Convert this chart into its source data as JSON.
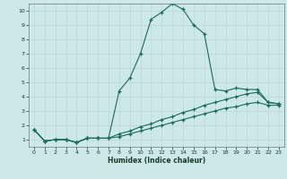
{
  "xlabel": "Humidex (Indice chaleur)",
  "background_color": "#cce8e8",
  "grid_color": "#c0d8d8",
  "line_color": "#1a6b5a",
  "xlim": [
    -0.5,
    23.5
  ],
  "ylim": [
    0.5,
    10.5
  ],
  "xticks": [
    0,
    1,
    2,
    3,
    4,
    5,
    6,
    7,
    8,
    9,
    10,
    11,
    12,
    13,
    14,
    15,
    16,
    17,
    18,
    19,
    20,
    21,
    22,
    23
  ],
  "yticks": [
    1,
    2,
    3,
    4,
    5,
    6,
    7,
    8,
    9,
    10
  ],
  "series1_x": [
    0,
    1,
    2,
    3,
    4,
    5,
    6,
    7,
    8,
    9,
    10,
    11,
    12,
    13,
    14,
    15,
    16,
    17,
    18,
    19,
    20,
    21,
    22,
    23
  ],
  "series1_y": [
    1.7,
    0.9,
    1.0,
    1.0,
    0.8,
    1.1,
    1.1,
    1.1,
    4.4,
    5.3,
    7.0,
    9.4,
    9.9,
    10.5,
    10.1,
    9.0,
    8.4,
    4.5,
    4.4,
    4.6,
    4.5,
    4.5,
    3.6,
    3.5
  ],
  "series2_x": [
    0,
    1,
    2,
    3,
    4,
    5,
    6,
    7,
    8,
    9,
    10,
    11,
    12,
    13,
    14,
    15,
    16,
    17,
    18,
    19,
    20,
    21,
    22,
    23
  ],
  "series2_y": [
    1.7,
    0.9,
    1.0,
    1.0,
    0.8,
    1.1,
    1.1,
    1.1,
    1.4,
    1.6,
    1.9,
    2.1,
    2.4,
    2.6,
    2.9,
    3.1,
    3.4,
    3.6,
    3.8,
    4.0,
    4.2,
    4.3,
    3.6,
    3.5
  ],
  "series3_x": [
    0,
    1,
    2,
    3,
    4,
    5,
    6,
    7,
    8,
    9,
    10,
    11,
    12,
    13,
    14,
    15,
    16,
    17,
    18,
    19,
    20,
    21,
    22,
    23
  ],
  "series3_y": [
    1.7,
    0.9,
    1.0,
    1.0,
    0.8,
    1.1,
    1.1,
    1.1,
    1.2,
    1.4,
    1.6,
    1.8,
    2.0,
    2.2,
    2.4,
    2.6,
    2.8,
    3.0,
    3.2,
    3.3,
    3.5,
    3.6,
    3.4,
    3.4
  ]
}
